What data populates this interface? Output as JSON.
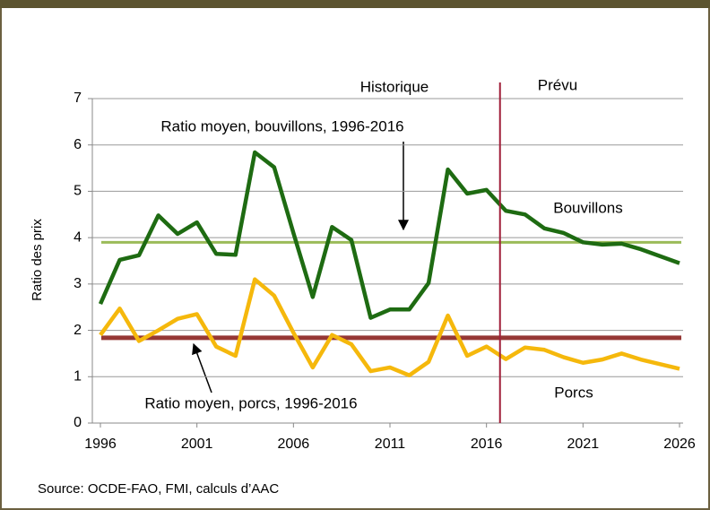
{
  "chart_data": {
    "type": "line",
    "ylabel": "Ratio des prix",
    "x": [
      1996,
      1997,
      1998,
      1999,
      2000,
      2001,
      2002,
      2003,
      2004,
      2005,
      2006,
      2007,
      2008,
      2009,
      2010,
      2011,
      2012,
      2013,
      2014,
      2015,
      2016,
      2017,
      2018,
      2019,
      2020,
      2021,
      2022,
      2023,
      2024,
      2025,
      2026
    ],
    "series": [
      {
        "name": "Bouvillons",
        "color": "#1e6b12",
        "values": [
          2.57,
          3.52,
          3.62,
          4.48,
          4.08,
          4.33,
          3.65,
          3.63,
          5.84,
          5.52,
          4.1,
          2.72,
          4.23,
          3.95,
          2.27,
          2.45,
          2.45,
          3.02,
          5.47,
          4.95,
          5.03,
          4.58,
          4.5,
          4.2,
          4.1,
          3.9,
          3.85,
          3.87,
          3.75,
          3.6,
          3.45
        ]
      },
      {
        "name": "Porcs",
        "color": "#f5b80c",
        "values": [
          1.9,
          2.47,
          1.77,
          2.0,
          2.25,
          2.35,
          1.65,
          1.45,
          3.1,
          2.75,
          1.95,
          1.2,
          1.9,
          1.7,
          1.12,
          1.2,
          1.03,
          1.32,
          2.32,
          1.45,
          1.65,
          1.38,
          1.63,
          1.58,
          1.42,
          1.3,
          1.37,
          1.5,
          1.37,
          1.27,
          1.17
        ]
      }
    ],
    "reference_lines": [
      {
        "label": "Ratio moyen, bouvillons, 1996-2016",
        "value": 3.9,
        "color": "#9bbb59"
      },
      {
        "label": "Ratio moyen, porcs, 1996-2016",
        "value": 1.84,
        "color": "#953735"
      }
    ],
    "divider": {
      "x": 2016.7,
      "color": "#a0203a",
      "left_label": "Historique",
      "right_label": "Prévu"
    },
    "xlim": [
      1996,
      2026
    ],
    "xticks": [
      1996,
      2001,
      2006,
      2011,
      2016,
      2021,
      2026
    ],
    "ylim": [
      0,
      7
    ],
    "yticks": [
      0,
      1,
      2,
      3,
      4,
      5,
      6,
      7
    ],
    "grid": true,
    "source": "Source: OCDE-FAO, FMI, calculs d’AAC"
  }
}
